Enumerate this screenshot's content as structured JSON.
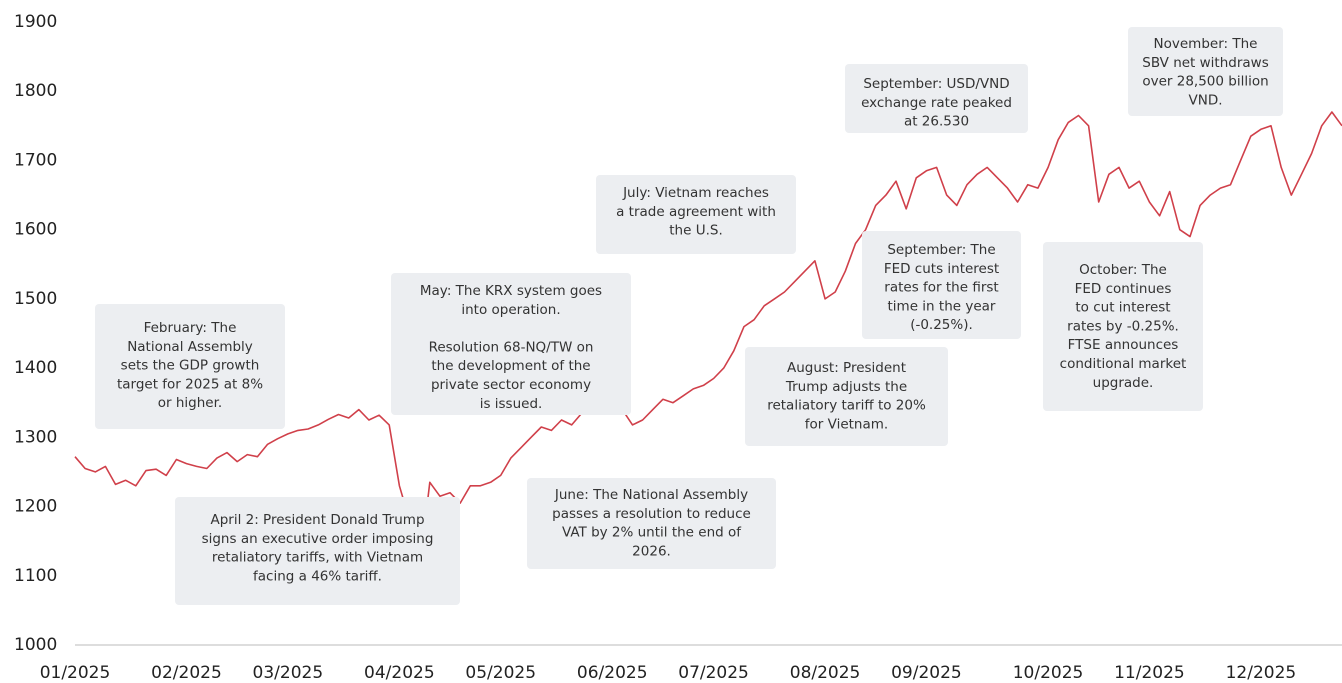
{
  "chart_data": {
    "type": "line",
    "categories": [
      "01/2025",
      null,
      null,
      null,
      null,
      null,
      null,
      null,
      null,
      null,
      null,
      "02/2025",
      null,
      null,
      null,
      null,
      null,
      null,
      null,
      null,
      null,
      "03/2025",
      null,
      null,
      null,
      null,
      null,
      null,
      null,
      null,
      null,
      null,
      "04/2025",
      null,
      null,
      null,
      null,
      null,
      null,
      null,
      null,
      null,
      "05/2025",
      null,
      null,
      null,
      null,
      null,
      null,
      null,
      null,
      null,
      null,
      "06/2025",
      null,
      null,
      null,
      null,
      null,
      null,
      null,
      null,
      null,
      "07/2025",
      null,
      null,
      null,
      null,
      null,
      null,
      null,
      null,
      null,
      null,
      "08/2025",
      null,
      null,
      null,
      null,
      null,
      null,
      null,
      null,
      null,
      "09/2025",
      null,
      null,
      null,
      null,
      null,
      null,
      null,
      null,
      null,
      null,
      null,
      "10/2025",
      null,
      null,
      null,
      null,
      null,
      null,
      null,
      null,
      null,
      "11/2025",
      null,
      null,
      null,
      null,
      null,
      null,
      null,
      null,
      null,
      null,
      "12/2025",
      null,
      null,
      null,
      null,
      null,
      null,
      null,
      null
    ],
    "series": [
      {
        "color": "#d0404a",
        "values": [
          1272,
          1255,
          1250,
          1258,
          1232,
          1238,
          1230,
          1252,
          1254,
          1245,
          1268,
          1262,
          1258,
          1255,
          1270,
          1278,
          1265,
          1275,
          1272,
          1290,
          1298,
          1305,
          1310,
          1312,
          1318,
          1326,
          1333,
          1328,
          1340,
          1325,
          1332,
          1318,
          1230,
          1180,
          1110,
          1235,
          1215,
          1220,
          1205,
          1230,
          1230,
          1235,
          1245,
          1270,
          1285,
          1300,
          1315,
          1310,
          1325,
          1318,
          1335,
          1345,
          1338,
          1350,
          1340,
          1318,
          1325,
          1340,
          1355,
          1350,
          1360,
          1370,
          1375,
          1385,
          1400,
          1425,
          1460,
          1470,
          1490,
          1500,
          1510,
          1525,
          1540,
          1555,
          1500,
          1510,
          1540,
          1580,
          1600,
          1635,
          1650,
          1670,
          1630,
          1675,
          1685,
          1690,
          1650,
          1635,
          1665,
          1680,
          1690,
          1675,
          1660,
          1640,
          1665,
          1660,
          1690,
          1730,
          1755,
          1765,
          1750,
          1640,
          1680,
          1690,
          1660,
          1670,
          1640,
          1620,
          1655,
          1600,
          1590,
          1635,
          1650,
          1660,
          1665,
          1700,
          1735,
          1745,
          1750,
          1690,
          1650,
          1680,
          1710,
          1750,
          1770,
          1750
        ]
      }
    ],
    "ylim": [
      1000,
      1900
    ],
    "yticks": [
      1000,
      1100,
      1200,
      1300,
      1400,
      1500,
      1600,
      1700,
      1800,
      1900
    ],
    "annotations": [
      {
        "lines": [
          "February: The",
          "National Assembly",
          "sets the GDP growth",
          "target for 2025 at 8%",
          "or higher."
        ]
      },
      {
        "lines": [
          "April 2: President Donald Trump",
          "signs an executive order imposing",
          "retaliatory tariffs, with Vietnam",
          "facing a 46% tariff."
        ]
      },
      {
        "lines": [
          "May: The KRX system goes",
          "into operation.",
          "Resolution 68-NQ/TW on",
          "the development of the",
          "private sector economy",
          "is issued."
        ]
      },
      {
        "lines": [
          "June: The National Assembly",
          "passes a resolution to reduce",
          "VAT by 2% until the end of",
          "2026."
        ]
      },
      {
        "lines": [
          "July: Vietnam reaches",
          "a trade agreement with",
          "the U.S."
        ]
      },
      {
        "lines": [
          "August: President",
          "Trump adjusts the",
          "retaliatory tariff to 20%",
          "for Vietnam."
        ]
      },
      {
        "lines": [
          "September: USD/VND",
          "exchange rate peaked",
          "at 26.530"
        ]
      },
      {
        "lines": [
          "September: The",
          "FED cuts interest",
          "rates for the first",
          "time in the year",
          "(-0.25%)."
        ]
      },
      {
        "lines": [
          "October: The",
          "FED continues",
          "to cut interest",
          "rates by -0.25%.",
          "FTSE announces",
          "conditional market",
          "upgrade."
        ]
      },
      {
        "lines": [
          "November: The",
          "SBV net withdraws",
          "over 28,500 billion",
          "VND."
        ]
      }
    ]
  }
}
